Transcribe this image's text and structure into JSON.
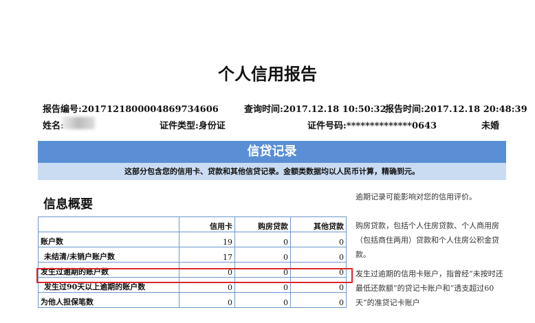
{
  "title": "个人信用报告",
  "info": {
    "report_no": "报告编号:2017121800004869734606",
    "query_time": "查询时间:2017.12.18 10:50:32",
    "report_time": "报告时间:2017.12.18 20:48:39",
    "name": "姓名:",
    "id_type": "证件类型:身份证",
    "id_no": "证件号码:**************0643",
    "marital": "未婚"
  },
  "banner": "信贷记录",
  "subbar": "这部分包含您的信用卡、贷款和其他信贷记录。金额类数据均以人民币计算，精确到元。",
  "section": "信息概要",
  "table": {
    "headers": [
      "",
      "信用卡",
      "购房贷款",
      "其他贷款"
    ],
    "rows": [
      [
        "账户数",
        "19",
        "0",
        "0"
      ],
      [
        "未结清/未销户账户数",
        "17",
        "0",
        "0"
      ],
      [
        "发生过逾期的账户数",
        "0",
        "0",
        "0"
      ],
      [
        "发生过90天以上逾期的账户数",
        "0",
        "0",
        "0"
      ],
      [
        "为他人担保笔数",
        "0",
        "0",
        "0"
      ]
    ]
  },
  "notes": [
    "逾期记录可能影响对您的信用评价。",
    "购房贷款，包括个人住房贷款、个人商用房（包括商住两用）贷款和个人住房公积金贷款。",
    "发生过逾期的信用卡账户，指曾经“未按时还最低还款额”的贷记卡账户和“透支超过60天”的准贷记卡账户"
  ],
  "highlight_color": "#d9262c",
  "banner_color": "#5a8fd6"
}
